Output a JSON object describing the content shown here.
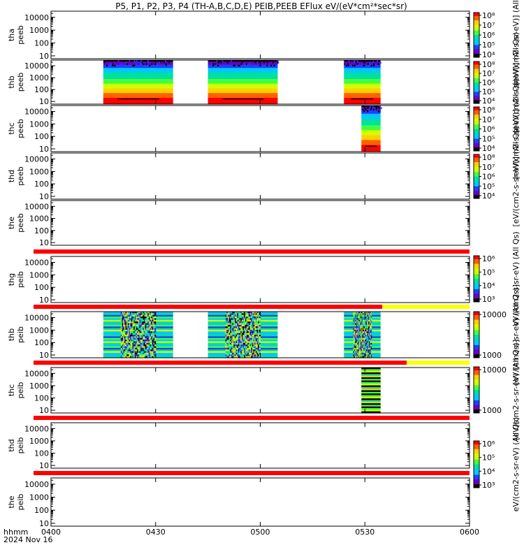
{
  "title": "P5, P1, P2, P3, P4 (TH-A,B,C,D,E) PEIB,PEEB EFlux eV/(eV*cm²*sec*sr)",
  "colors": {
    "bar_red": "#ff0000",
    "bar_yellow": "#ffff00",
    "colormap": [
      "#000000",
      "#6a00c8",
      "#2040ff",
      "#00c8ff",
      "#00e0a0",
      "#40ff40",
      "#d0ff00",
      "#ffd000",
      "#ff6000",
      "#ff0000"
    ]
  },
  "chart_data": {
    "type": "heatmap",
    "x_axis": {
      "row_label_line1": "hhmm",
      "row_label_line2": "2024 Nov 16",
      "range": [
        "0400",
        "0600"
      ],
      "tick_labels": [
        "0400",
        "0430",
        "0500",
        "0530",
        "0600"
      ],
      "tick_values_min": [
        0,
        30,
        60,
        90,
        120
      ]
    },
    "y_scale": "log",
    "panels": [
      {
        "id": "tha-peeb",
        "ylabel": [
          "tha",
          "peeb"
        ],
        "ticks": [
          "10000",
          "1000",
          "100",
          "10"
        ],
        "tick_values": [
          10000,
          1000,
          100,
          10
        ],
        "ylim": [
          6,
          30000
        ],
        "data_intervals_min": [],
        "colorbar": "electron"
      },
      {
        "id": "thb-peeb",
        "ylabel": [
          "thb",
          "peeb"
        ],
        "ticks": [
          "10000",
          "1000",
          "100",
          "10"
        ],
        "tick_values": [
          10000,
          1000,
          100,
          10
        ],
        "ylim": [
          6,
          30000
        ],
        "data_intervals_min": [
          [
            15,
            35
          ],
          [
            45,
            65
          ],
          [
            84,
            94.5
          ]
        ],
        "style": "electron",
        "colorbar": "electron"
      },
      {
        "id": "thc-peeb",
        "ylabel": [
          "thc",
          "peeb"
        ],
        "ticks": [
          "10000",
          "1000",
          "100",
          "10"
        ],
        "tick_values": [
          10000,
          1000,
          100,
          10
        ],
        "ylim": [
          6,
          30000
        ],
        "data_intervals_min": [
          [
            89,
            94.5
          ]
        ],
        "style": "electron",
        "colorbar": "electron"
      },
      {
        "id": "thd-peeb",
        "ylabel": [
          "thd",
          "peeb"
        ],
        "ticks": [
          "10000",
          "1000",
          "100",
          "10"
        ],
        "tick_values": [
          10000,
          1000,
          100,
          10
        ],
        "ylim": [
          6,
          30000
        ],
        "data_intervals_min": [],
        "colorbar": "electron"
      },
      {
        "id": "the-peeb",
        "ylabel": [
          "the",
          "peeb"
        ],
        "ticks": [
          "10000",
          "1000",
          "100",
          "10"
        ],
        "tick_values": [
          10000,
          1000,
          100,
          10
        ],
        "ylim": [
          6,
          30000
        ],
        "data_intervals_min": [],
        "colorbar": "none"
      },
      {
        "id": "thb-peib",
        "ylabel": [
          "thg",
          "peib"
        ],
        "ticks": [
          "10000",
          "1000",
          "100",
          "10"
        ],
        "tick_values": [
          10000,
          1000,
          100,
          10
        ],
        "ylim": [
          6,
          30000
        ],
        "data_intervals_min": [],
        "colorbar": "ion",
        "red_bar_above": [
          0,
          120
        ]
      },
      {
        "id": "thb-peib-2",
        "ylabel": [
          "thb",
          "peib"
        ],
        "ticks": [
          "10000",
          "1000",
          "100",
          "10"
        ],
        "tick_values": [
          10000,
          1000,
          100,
          10
        ],
        "ylim": [
          6,
          30000
        ],
        "data_intervals_min": [
          [
            15,
            35
          ],
          [
            45,
            65
          ],
          [
            84,
            94.5
          ]
        ],
        "style": "ion",
        "colorbar": "ion2",
        "red_bar_above": [
          0,
          95
        ],
        "yellow_bar_above": [
          95,
          120
        ]
      },
      {
        "id": "thc-peib",
        "ylabel": [
          "thc",
          "peib"
        ],
        "ticks": [
          "10000",
          "1000",
          "100",
          "10"
        ],
        "tick_values": [
          10000,
          1000,
          100,
          10
        ],
        "ylim": [
          6,
          30000
        ],
        "data_intervals_min": [
          [
            89,
            94.5
          ]
        ],
        "style": "ion-sparse",
        "colorbar": "ion2",
        "red_bar_above": [
          0,
          102
        ],
        "yellow_bar_above": [
          102,
          120
        ]
      },
      {
        "id": "thd-peib",
        "ylabel": [
          "thd",
          "peib"
        ],
        "ticks": [
          "10000",
          "1000",
          "100",
          "10"
        ],
        "tick_values": [
          10000,
          1000,
          100,
          10
        ],
        "ylim": [
          6,
          30000
        ],
        "data_intervals_min": [],
        "colorbar": "ion",
        "red_bar_above": [
          0,
          120
        ]
      },
      {
        "id": "the-peib",
        "ylabel": [
          "the",
          "peib"
        ],
        "ticks": [
          "10000",
          "1000",
          "100",
          "10"
        ],
        "tick_values": [
          10000,
          1000,
          100,
          10
        ],
        "ylim": [
          6,
          30000
        ],
        "data_intervals_min": [],
        "colorbar": "none",
        "red_bar_above": [
          0,
          120
        ]
      }
    ],
    "colorbars": {
      "electron": {
        "tick_labels": [
          "10⁸",
          "10⁷",
          "10⁶",
          "10⁵",
          "10⁴"
        ],
        "unit_label": "[eV/(cm2-s-sr-eV)] (All Qs)"
      },
      "ion": {
        "tick_labels": [
          "10⁶",
          "10⁵",
          "10⁴",
          "10³"
        ],
        "unit_label": "eV/(cm2-s-sr-eV) (All Qs)"
      },
      "ion2": {
        "tick_labels": [
          "10000",
          "1000"
        ],
        "unit_label": "[eV/(cm2-s-sr-eV) (All Qs)]"
      }
    }
  }
}
